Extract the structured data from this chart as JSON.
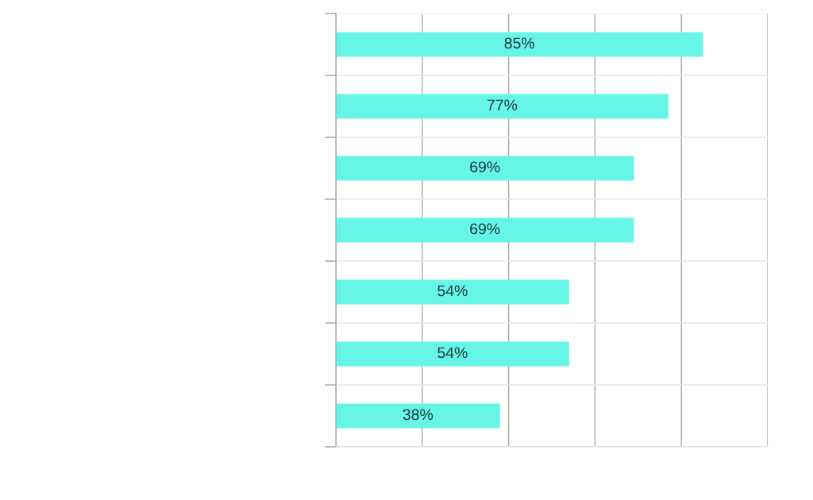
{
  "chart_data": {
    "type": "bar",
    "orientation": "horizontal",
    "categories": [
      null,
      null,
      null,
      null,
      null,
      null,
      null
    ],
    "values": [
      85,
      77,
      69,
      69,
      54,
      54,
      38
    ],
    "color": "#66f5e6",
    "value_labels": [
      "85%",
      "77%",
      "69%",
      "69%",
      "54%",
      "54%",
      "38%"
    ],
    "xlim": [
      0,
      100
    ],
    "xticks": [
      {
        "value": 0,
        "label": null
      },
      {
        "value": 20,
        "label": null
      },
      {
        "value": 40,
        "label": null
      },
      {
        "value": 60,
        "label": null
      },
      {
        "value": 80,
        "label": null
      },
      {
        "value": 100,
        "label": null
      }
    ],
    "grid": "x"
  }
}
